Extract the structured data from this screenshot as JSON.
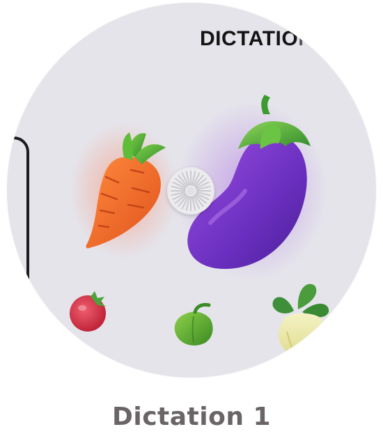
{
  "thumbnail": {
    "brand_text": "DICTATION",
    "background_color": "#e5e4eb",
    "icons": [
      "carrot-icon",
      "eggplant-icon",
      "tomato-icon",
      "bell-pepper-icon",
      "turnip-icon"
    ]
  },
  "play_button": {
    "icon": "sunburst-play-icon"
  },
  "caption": "Dictation 1"
}
